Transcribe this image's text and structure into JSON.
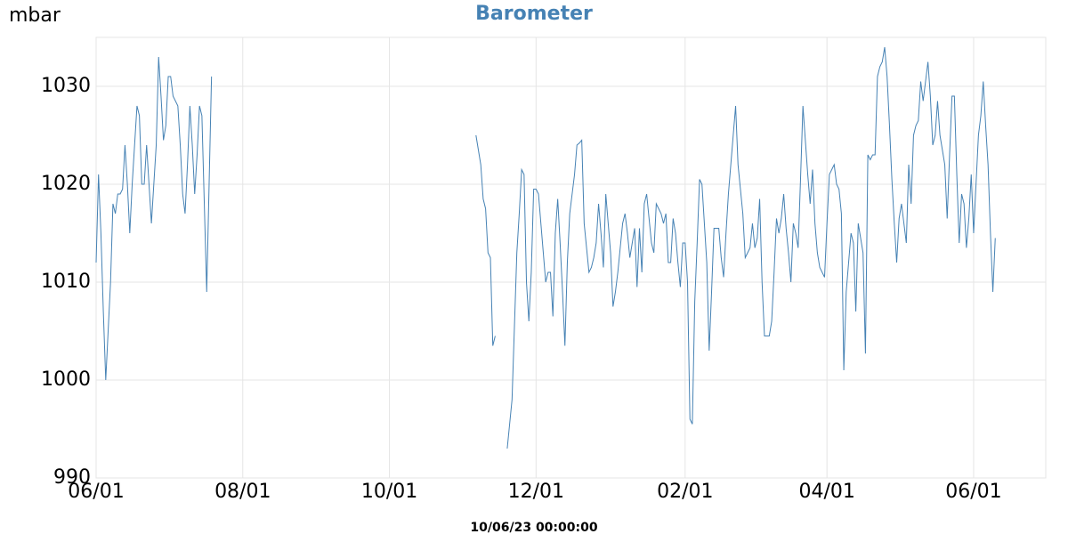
{
  "chart_data": {
    "type": "line",
    "title": "Barometer",
    "y_label": "mbar",
    "x_label": "10/06/23 00:00:00",
    "ylim": [
      990,
      1035
    ],
    "yticks": [
      990,
      1000,
      1010,
      1020,
      1030
    ],
    "grid": true,
    "categories": [
      "06/01",
      null,
      null,
      null,
      null,
      null,
      null,
      null,
      null,
      null,
      null,
      null,
      null,
      null,
      null,
      null,
      null,
      null,
      null,
      null,
      null,
      null,
      null,
      null,
      null,
      null,
      null,
      null,
      null,
      null,
      null,
      null,
      null,
      null,
      null,
      null,
      null,
      null,
      null,
      null,
      null,
      null,
      null,
      null,
      null,
      null,
      null,
      null,
      null,
      null,
      null,
      null,
      null,
      null,
      null,
      null,
      null,
      null,
      null,
      null,
      null,
      "08/01",
      null,
      null,
      null,
      null,
      null,
      null,
      null,
      null,
      null,
      null,
      null,
      null,
      null,
      null,
      null,
      null,
      null,
      null,
      null,
      null,
      null,
      null,
      null,
      null,
      null,
      null,
      null,
      null,
      null,
      null,
      null,
      null,
      null,
      null,
      null,
      null,
      null,
      null,
      null,
      null,
      null,
      null,
      null,
      null,
      null,
      null,
      null,
      null,
      null,
      null,
      null,
      null,
      null,
      null,
      null,
      null,
      null,
      null,
      null,
      null,
      "10/01",
      null,
      null,
      null,
      null,
      null,
      null,
      null,
      null,
      null,
      null,
      null,
      null,
      null,
      null,
      null,
      null,
      null,
      null,
      null,
      null,
      null,
      null,
      null,
      null,
      null,
      null,
      null,
      null,
      null,
      null,
      null,
      null,
      null,
      null,
      null,
      null,
      null,
      null,
      null,
      null,
      null,
      null,
      null,
      null,
      null,
      null,
      null,
      null,
      null,
      null,
      null,
      null,
      null,
      null,
      null,
      null,
      null,
      null,
      null,
      null,
      "12/01",
      null,
      null,
      null,
      null,
      null,
      null,
      null,
      null,
      null,
      null,
      null,
      null,
      null,
      null,
      null,
      null,
      null,
      null,
      null,
      null,
      null,
      null,
      null,
      null,
      null,
      null,
      null,
      null,
      null,
      null,
      null,
      null,
      null,
      null,
      null,
      null,
      null,
      null,
      null,
      null,
      null,
      null,
      null,
      null,
      null,
      null,
      null,
      null,
      null,
      null,
      null,
      null,
      null,
      null,
      null,
      null,
      null,
      null,
      null,
      null,
      null,
      "02/01",
      null,
      null,
      null,
      null,
      null,
      null,
      null,
      null,
      null,
      null,
      null,
      null,
      null,
      null,
      null,
      null,
      null,
      null,
      null,
      null,
      null,
      null,
      null,
      null,
      null,
      null,
      null,
      null,
      null,
      null,
      null,
      null,
      null,
      null,
      null,
      null,
      null,
      null,
      null,
      null,
      null,
      null,
      null,
      null,
      null,
      null,
      null,
      null,
      null,
      null,
      null,
      null,
      null,
      null,
      null,
      null,
      null,
      null,
      "04/01",
      null,
      null,
      null,
      null,
      null,
      null,
      null,
      null,
      null,
      null,
      null,
      null,
      null,
      null,
      null,
      null,
      null,
      null,
      null,
      null,
      null,
      null,
      null,
      null,
      null,
      null,
      null,
      null,
      null,
      null,
      null,
      null,
      null,
      null,
      null,
      null,
      null,
      null,
      null,
      null,
      null,
      null,
      null,
      null,
      null,
      null,
      null,
      null,
      null,
      null,
      null,
      null,
      null,
      null,
      null,
      null,
      null,
      null,
      null,
      null,
      "06/01",
      null,
      null,
      null,
      null,
      null,
      null,
      null,
      null,
      null,
      null,
      null,
      null,
      null,
      null,
      null,
      null,
      null,
      null,
      null,
      null,
      null,
      null,
      null,
      null,
      null,
      null,
      null,
      null,
      null,
      null
    ],
    "series": [
      {
        "name": "Barometer",
        "color": "#4682b4",
        "values": [
          1012,
          1021,
          1015,
          1007,
          1000,
          1005,
          1010,
          1018,
          1017,
          1019,
          1019,
          1019.5,
          1024,
          1020,
          1015,
          1020,
          1024,
          1028,
          1027,
          1020,
          1020,
          1024,
          1020,
          1016,
          1020,
          1024,
          1033,
          1029,
          1024.5,
          1026,
          1031,
          1031,
          1029,
          1028.5,
          1028,
          1024,
          1019,
          1017,
          1022,
          1028,
          1024,
          1019,
          1023,
          1028,
          1027,
          1018,
          1009,
          1020,
          1031,
          null,
          null,
          null,
          null,
          null,
          null,
          null,
          null,
          null,
          null,
          null,
          null,
          null,
          null,
          null,
          null,
          null,
          null,
          null,
          null,
          null,
          null,
          null,
          null,
          null,
          null,
          null,
          null,
          null,
          null,
          null,
          null,
          null,
          null,
          null,
          null,
          null,
          null,
          null,
          null,
          null,
          null,
          null,
          null,
          null,
          null,
          null,
          null,
          null,
          null,
          null,
          null,
          null,
          null,
          null,
          null,
          null,
          null,
          null,
          null,
          null,
          null,
          null,
          null,
          null,
          null,
          null,
          null,
          null,
          null,
          null,
          null,
          null,
          null,
          null,
          null,
          null,
          null,
          null,
          null,
          null,
          null,
          null,
          null,
          null,
          null,
          null,
          null,
          null,
          null,
          null,
          null,
          null,
          null,
          null,
          null,
          null,
          null,
          null,
          null,
          null,
          null,
          null,
          null,
          null,
          null,
          null,
          null,
          null,
          1025,
          1023.5,
          1022,
          1018.5,
          1017.5,
          1013,
          1012.5,
          1003.5,
          1004.5,
          null,
          null,
          null,
          null,
          993,
          995.5,
          998,
          1005.5,
          1013,
          1017,
          1021.5,
          1021,
          1010,
          1006,
          1011,
          1019.5,
          1019.5,
          1019,
          1016,
          1013,
          1010,
          1011,
          1011,
          1006.5,
          1015,
          1018.5,
          1014,
          1009,
          1003.5,
          1012,
          1017,
          1019,
          1021,
          1024,
          1024.2,
          1024.5,
          1016,
          1013.5,
          1011,
          1011.5,
          1012.5,
          1014,
          1018,
          1015,
          1011.5,
          1019,
          1016,
          1013,
          1007.5,
          1009,
          1011,
          1013.5,
          1016,
          1017,
          1015,
          1012.5,
          1014,
          1015.5,
          1009.5,
          1015.5,
          1011,
          1018,
          1019,
          1016.5,
          1014,
          1013,
          1018,
          1017.5,
          1017,
          1016,
          1017,
          1012,
          1012,
          1016.5,
          1015,
          1012,
          1009.5,
          1014,
          1014,
          1010,
          996,
          995.5,
          1008,
          1014,
          1020.5,
          1020,
          1016,
          1012,
          1003,
          1009,
          1015.5,
          1015.5,
          1015.5,
          1012.5,
          1010.5,
          1015,
          1019,
          1022,
          1025,
          1028,
          1022,
          1019.5,
          1017,
          1012.5,
          1013,
          1013.5,
          1016,
          1013.5,
          1014.5,
          1018.5,
          1010,
          1004.5,
          1004.5,
          1004.5,
          1006,
          1011,
          1016.5,
          1015,
          1016.5,
          1019,
          1015.5,
          1013,
          1010,
          1016,
          1015,
          1013.5,
          1020.5,
          1028,
          1024.5,
          1021,
          1018,
          1021.5,
          1016,
          1013,
          1011.5,
          1011,
          1010.5,
          1016,
          1021,
          1021.5,
          1022,
          1020,
          1019.5,
          1017,
          1001,
          1009,
          1012,
          1015,
          1014,
          1007,
          1016,
          1014.5,
          1013,
          1002.7,
          1023,
          1022.5,
          1023,
          1023,
          1031,
          1032,
          1032.5,
          1034,
          1031,
          1026,
          1020.5,
          1016,
          1012,
          1016.5,
          1018,
          1016,
          1014,
          1022,
          1018,
          1025,
          1026,
          1026.5,
          1030.5,
          1028.5,
          1030.5,
          1032.5,
          1029,
          1024,
          1025,
          1028.5,
          1025,
          1023.5,
          1022,
          1016.5,
          1023,
          1029,
          1029,
          1021,
          1014,
          1019,
          1018,
          1013.5,
          1016.5,
          1021,
          1015,
          1020,
          1025,
          1027,
          1030.5,
          1026,
          1022,
          1015,
          1009,
          1014.5,
          null,
          null,
          null,
          null,
          null,
          null,
          null,
          null,
          null,
          null,
          null,
          null,
          null,
          null,
          null,
          null,
          null,
          null,
          null,
          null,
          null
        ]
      }
    ]
  }
}
